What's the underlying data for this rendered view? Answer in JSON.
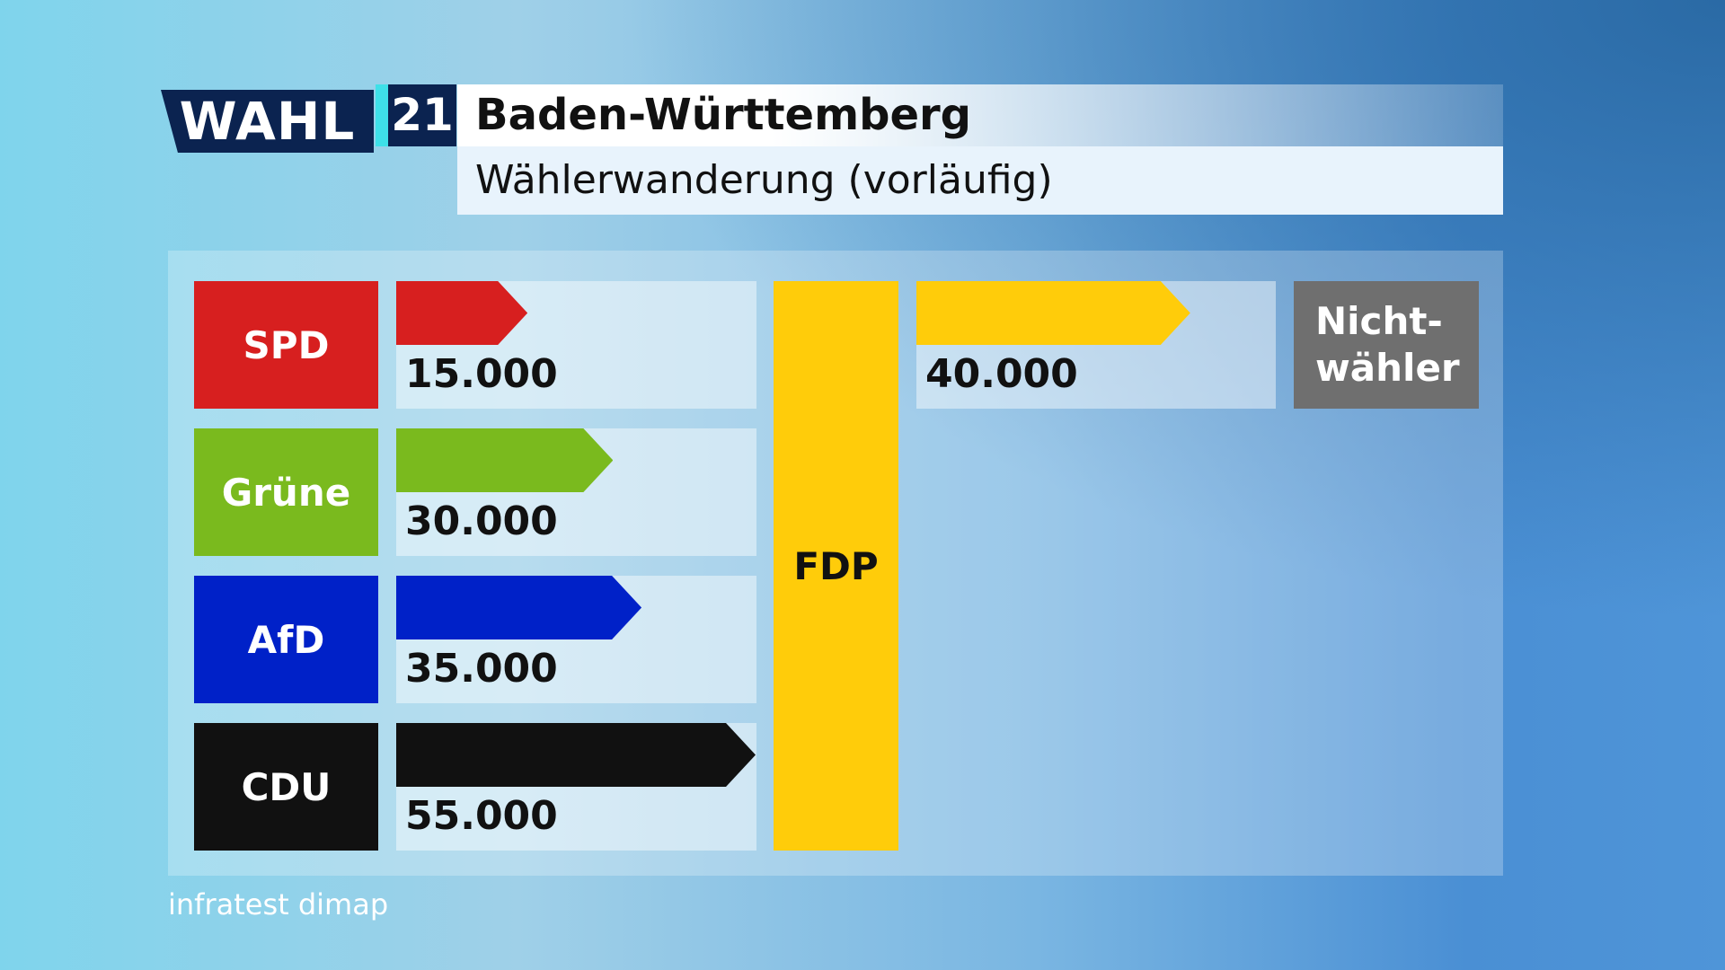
{
  "chart_data": {
    "type": "flow",
    "logo_text": "WAHL",
    "logo_number": "21",
    "title": "Baden-Württemberg",
    "subtitle": "Wählerwanderung (vorläufig)",
    "target": {
      "name": "FDP",
      "color": "#ffcc0a"
    },
    "inflows": {
      "categories": [
        "SPD",
        "Grüne",
        "AfD",
        "CDU"
      ],
      "values": [
        15000,
        30000,
        35000,
        55000
      ],
      "value_labels": [
        "15.000",
        "30.000",
        "35.000",
        "55.000"
      ],
      "colors": [
        "#d71f1f",
        "#7aba1e",
        "#0021c8",
        "#111111"
      ]
    },
    "outflows": {
      "categories": [
        "Nicht-wähler"
      ],
      "values": [
        40000
      ],
      "value_labels": [
        "40.000"
      ],
      "colors": [
        "#ffcc0a"
      ],
      "box_colors": [
        "#6f6f6f"
      ]
    },
    "source": "infratest dimap"
  }
}
